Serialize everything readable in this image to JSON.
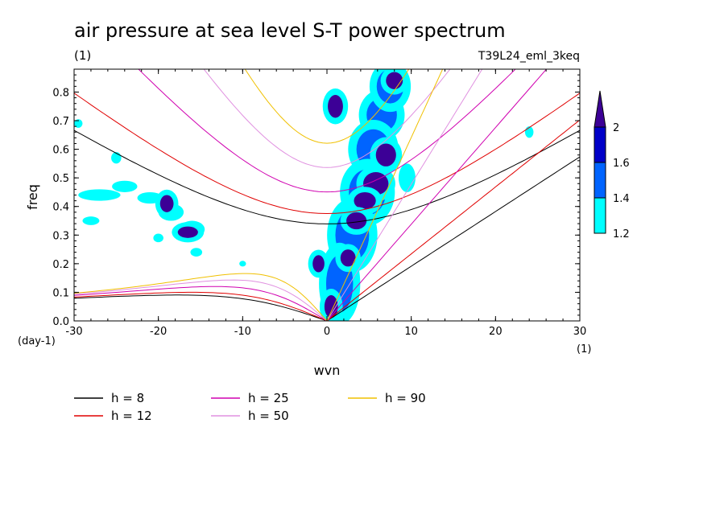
{
  "chart_data": {
    "type": "heatmap",
    "title": "air pressure at sea level S-T power spectrum",
    "units_left": "(1)",
    "run_label": "T39L24_eml_3keq",
    "xlabel": "wvn",
    "ylabel": "freq",
    "y_unit": "(day-1)",
    "x_unit": "(1)",
    "xlim": [
      -30,
      30
    ],
    "ylim": [
      0,
      0.88
    ],
    "x_ticks": [
      "-30",
      "-20",
      "-10",
      "0",
      "10",
      "20",
      "30"
    ],
    "y_ticks": [
      "0.0",
      "0.1",
      "0.2",
      "0.3",
      "0.4",
      "0.5",
      "0.6",
      "0.7",
      "0.8"
    ],
    "colorbar": {
      "levels": [
        "1.2",
        "1.4",
        "1.6",
        "2"
      ],
      "colors": [
        "#00ffff",
        "#0064ff",
        "#0000c8",
        "#3c0096"
      ]
    },
    "blobs": [
      {
        "x": 1.0,
        "y": 0.75,
        "rx": 0.9,
        "ry": 0.04,
        "level": 3
      },
      {
        "x": 8.0,
        "y": 0.84,
        "rx": 1.0,
        "ry": 0.03,
        "level": 3
      },
      {
        "x": 7.0,
        "y": 0.58,
        "rx": 1.2,
        "ry": 0.04,
        "level": 3
      },
      {
        "x": 5.8,
        "y": 0.48,
        "rx": 1.5,
        "ry": 0.04,
        "level": 3
      },
      {
        "x": 4.5,
        "y": 0.42,
        "rx": 1.3,
        "ry": 0.03,
        "level": 3
      },
      {
        "x": 3.5,
        "y": 0.35,
        "rx": 1.2,
        "ry": 0.03,
        "level": 3
      },
      {
        "x": 2.5,
        "y": 0.22,
        "rx": 0.9,
        "ry": 0.03,
        "level": 3
      },
      {
        "x": 0.5,
        "y": 0.05,
        "rx": 0.8,
        "ry": 0.04,
        "level": 3
      },
      {
        "x": -1.0,
        "y": 0.2,
        "rx": 0.7,
        "ry": 0.03,
        "level": 3
      },
      {
        "x": -19.0,
        "y": 0.41,
        "rx": 0.8,
        "ry": 0.03,
        "level": 3
      },
      {
        "x": -16.5,
        "y": 0.31,
        "rx": 1.2,
        "ry": 0.02,
        "level": 3
      },
      {
        "x": 6.5,
        "y": 0.72,
        "rx": 1.8,
        "ry": 0.06,
        "level": 1
      },
      {
        "x": 5.5,
        "y": 0.6,
        "rx": 2.0,
        "ry": 0.07,
        "level": 1
      },
      {
        "x": 4.8,
        "y": 0.45,
        "rx": 2.2,
        "ry": 0.08,
        "level": 1
      },
      {
        "x": 3.0,
        "y": 0.3,
        "rx": 2.0,
        "ry": 0.09,
        "level": 1
      },
      {
        "x": 1.5,
        "y": 0.13,
        "rx": 1.6,
        "ry": 0.1,
        "level": 1
      },
      {
        "x": 7.5,
        "y": 0.82,
        "rx": 1.6,
        "ry": 0.06,
        "level": 1
      },
      {
        "x": 9.5,
        "y": 0.5,
        "rx": 1.0,
        "ry": 0.05,
        "level": 0
      },
      {
        "x": -27.0,
        "y": 0.44,
        "rx": 2.5,
        "ry": 0.02,
        "level": 0
      },
      {
        "x": -24.0,
        "y": 0.47,
        "rx": 1.5,
        "ry": 0.02,
        "level": 0
      },
      {
        "x": -21.0,
        "y": 0.43,
        "rx": 1.5,
        "ry": 0.02,
        "level": 0
      },
      {
        "x": -18.5,
        "y": 0.38,
        "rx": 1.5,
        "ry": 0.03,
        "level": 0
      },
      {
        "x": -16.0,
        "y": 0.32,
        "rx": 1.5,
        "ry": 0.03,
        "level": 0
      },
      {
        "x": -25.0,
        "y": 0.57,
        "rx": 0.6,
        "ry": 0.02,
        "level": 0
      },
      {
        "x": -28.0,
        "y": 0.35,
        "rx": 1.0,
        "ry": 0.015,
        "level": 0
      },
      {
        "x": -20.0,
        "y": 0.29,
        "rx": 0.6,
        "ry": 0.015,
        "level": 0
      },
      {
        "x": -15.5,
        "y": 0.24,
        "rx": 0.7,
        "ry": 0.015,
        "level": 0
      },
      {
        "x": 24.0,
        "y": 0.66,
        "rx": 0.5,
        "ry": 0.02,
        "level": 0
      },
      {
        "x": -29.5,
        "y": 0.69,
        "rx": 0.5,
        "ry": 0.015,
        "level": 0
      },
      {
        "x": -10.0,
        "y": 0.2,
        "rx": 0.4,
        "ry": 0.01,
        "level": 0
      }
    ],
    "series": [
      {
        "name": "h =  8",
        "h": 8,
        "color": "#000000"
      },
      {
        "name": "h = 12",
        "h": 12,
        "color": "#e00000"
      },
      {
        "name": "h = 25",
        "h": 25,
        "color": "#d000b0"
      },
      {
        "name": "h = 50",
        "h": 50,
        "color": "#e090e0"
      },
      {
        "name": "h = 90",
        "h": 90,
        "color": "#f0c000"
      }
    ]
  }
}
